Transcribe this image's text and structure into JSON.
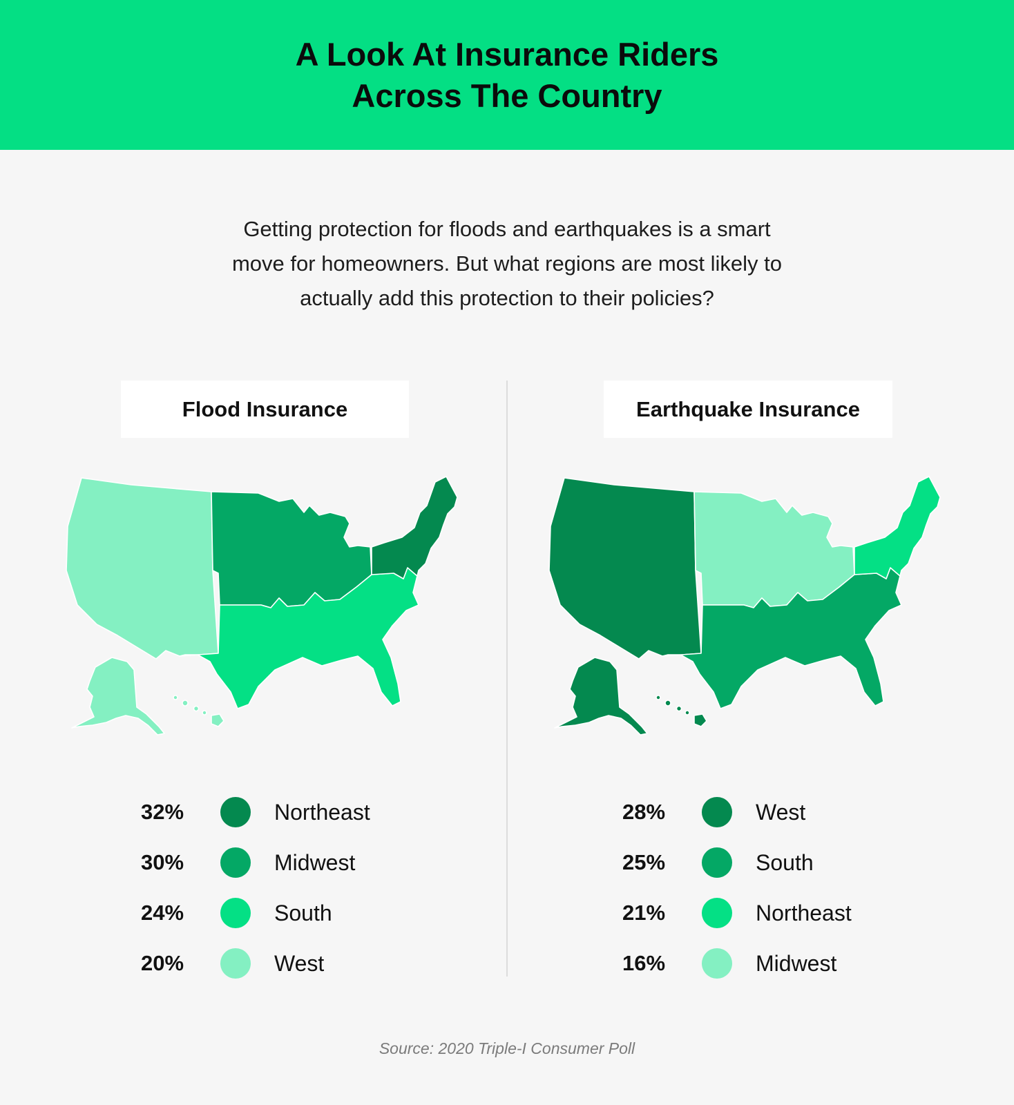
{
  "header": {
    "title_line1": "A Look At Insurance Riders",
    "title_line2": "Across The Country"
  },
  "intro": {
    "line1": "Getting protection for floods and earthquakes is a smart",
    "line2": "move for homeowners. But what regions are most likely to",
    "line3": "actually add this protection to their policies?"
  },
  "colors": {
    "darkest": "#04894f",
    "dark": "#04a865",
    "bright": "#04e085",
    "light": "#84f0c2",
    "banner": "#04df84"
  },
  "flood": {
    "title": "Flood Insurance",
    "legend": [
      {
        "pct": "32%",
        "region": "Northeast",
        "color": "#04894f"
      },
      {
        "pct": "30%",
        "region": "Midwest",
        "color": "#04a865"
      },
      {
        "pct": "24%",
        "region": "South",
        "color": "#04e085"
      },
      {
        "pct": "20%",
        "region": "West",
        "color": "#84f0c2"
      }
    ]
  },
  "earthquake": {
    "title": "Earthquake Insurance",
    "legend": [
      {
        "pct": "28%",
        "region": "West",
        "color": "#04894f"
      },
      {
        "pct": "25%",
        "region": "South",
        "color": "#04a865"
      },
      {
        "pct": "21%",
        "region": "Northeast",
        "color": "#04e085"
      },
      {
        "pct": "16%",
        "region": "Midwest",
        "color": "#84f0c2"
      }
    ]
  },
  "source": "Source: 2020 Triple-I Consumer Poll"
}
